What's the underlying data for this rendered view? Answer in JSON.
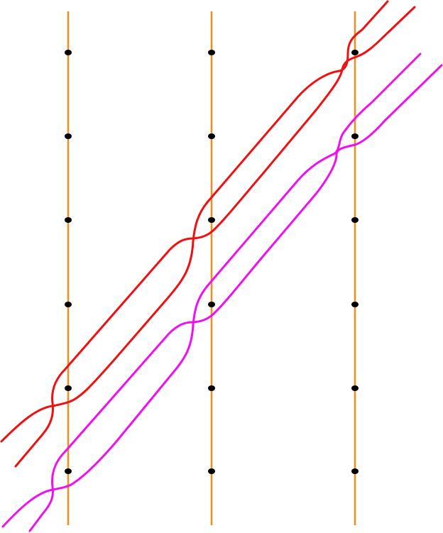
{
  "colors": {
    "background": "#ffffff",
    "vertical_lines": "#f28c1c",
    "nodes": "#000000",
    "braid_red": "#ee1111",
    "braid_magenta": "#ee11ee"
  },
  "grid": {
    "columns": 3,
    "rows": 6
  },
  "strands": [
    {
      "id": "red-strand-a",
      "color_key": "braid_red"
    },
    {
      "id": "red-strand-b",
      "color_key": "braid_red"
    },
    {
      "id": "magenta-strand-a",
      "color_key": "braid_magenta"
    },
    {
      "id": "magenta-strand-b",
      "color_key": "braid_magenta"
    }
  ]
}
